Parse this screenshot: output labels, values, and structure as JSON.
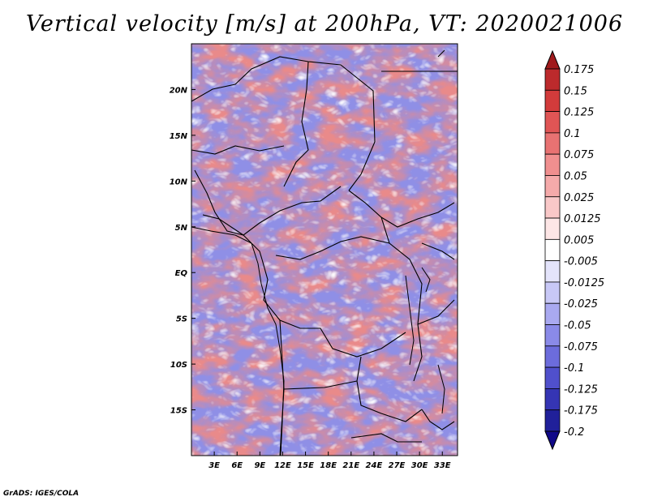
{
  "title": "Vertical velocity [m/s] at 200hPa, VT: 2020021006",
  "credit": "GrADS: IGES/COLA",
  "map": {
    "region": "Central Africa",
    "lon_range": [
      0,
      35
    ],
    "lat_range": [
      -20,
      25
    ],
    "lat_labels": [
      "20N",
      "15N",
      "10N",
      "5N",
      "EQ",
      "5S",
      "10S",
      "15S"
    ],
    "lat_values": [
      20,
      15,
      10,
      5,
      0,
      -5,
      -10,
      -15
    ],
    "lon_labels": [
      "3E",
      "6E",
      "9E",
      "12E",
      "15E",
      "18E",
      "21E",
      "24E",
      "27E",
      "30E",
      "33E"
    ],
    "lon_values": [
      3,
      6,
      9,
      12,
      15,
      18,
      21,
      24,
      27,
      30,
      33
    ]
  },
  "colorbar": {
    "labels": [
      "0.175",
      "0.15",
      "0.125",
      "0.1",
      "0.075",
      "0.05",
      "0.025",
      "0.0125",
      "0.005",
      "-0.005",
      "-0.0125",
      "-0.025",
      "-0.05",
      "-0.075",
      "-0.1",
      "-0.125",
      "-0.175",
      "-0.2"
    ],
    "colors": [
      "#a01a1c",
      "#bc2a2c",
      "#d23b3b",
      "#e05555",
      "#e87272",
      "#f08f8f",
      "#f5aaaa",
      "#f9c8c8",
      "#fde6e6",
      "#ffffff",
      "#e4e4fb",
      "#c8c8f6",
      "#a9a9f0",
      "#8a8ae8",
      "#6c6cdc",
      "#5050cc",
      "#3535b4",
      "#20209a",
      "#100888"
    ]
  }
}
